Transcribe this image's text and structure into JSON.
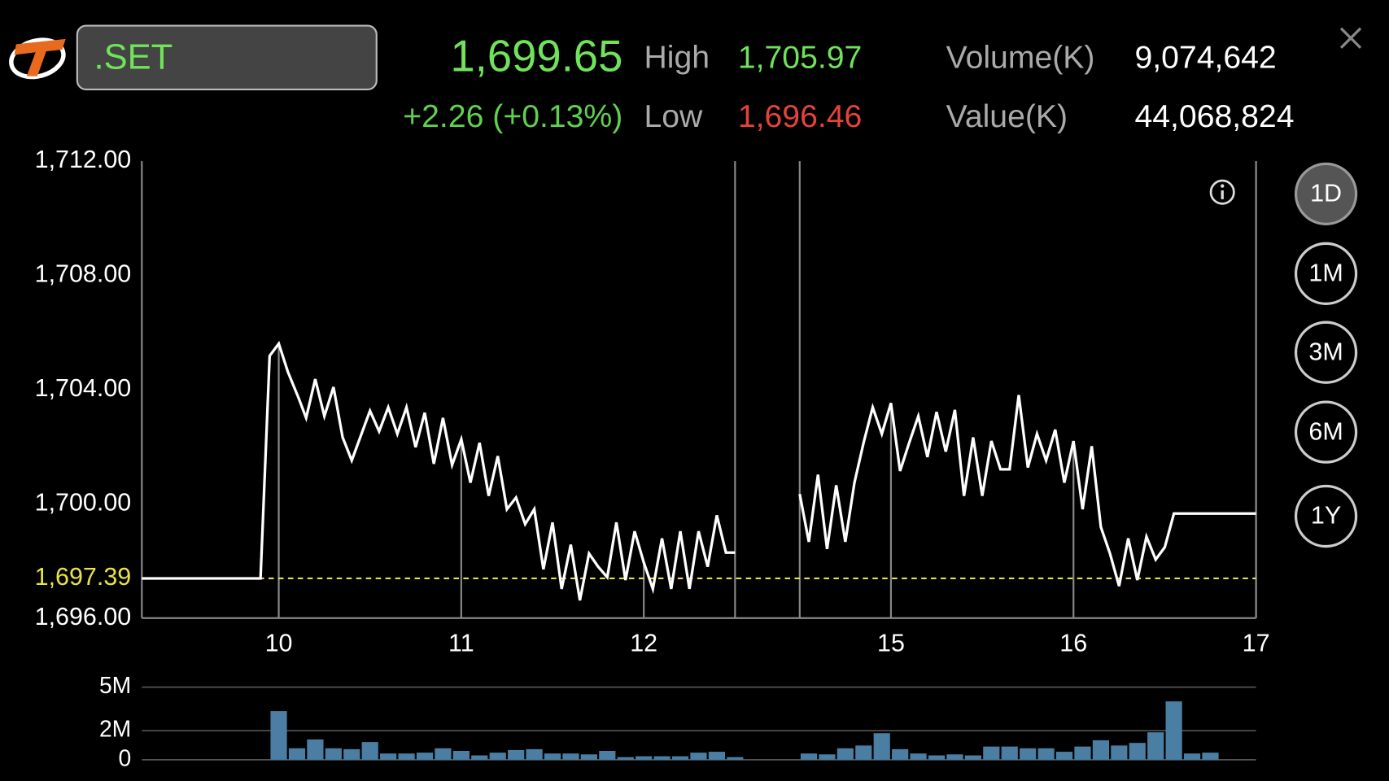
{
  "header": {
    "symbol": ".SET",
    "last": "1,699.65",
    "change": "+2.26 (+0.13%)",
    "high_label": "High",
    "high": "1,705.97",
    "low_label": "Low",
    "low": "1,696.46",
    "volume_label": "Volume(K)",
    "volume": "9,074,642",
    "value_label": "Value(K)",
    "value": "44,068,824"
  },
  "periods": [
    "1D",
    "1M",
    "3M",
    "6M",
    "1Y"
  ],
  "selected_period": "1D",
  "chart_data": [
    {
      "type": "line",
      "color": "#ffffff",
      "xlim": [
        9.25,
        17
      ],
      "break": [
        12.5,
        14.5
      ],
      "xticks": [
        10,
        11,
        12,
        15,
        16,
        17
      ],
      "ylim": [
        1696,
        1712
      ],
      "yticks": [
        {
          "value": 1712,
          "label": "1,712.00"
        },
        {
          "value": 1708,
          "label": "1,708.00"
        },
        {
          "value": 1704,
          "label": "1,704.00"
        },
        {
          "value": 1700,
          "label": "1,700.00"
        },
        {
          "value": 1696,
          "label": "1,696.00"
        }
      ],
      "reference": {
        "value": 1697.39,
        "label": "1,697.39",
        "color": "#e8e24a"
      },
      "x": [
        9.25,
        9.9,
        9.95,
        10.0,
        10.05,
        10.11,
        10.15,
        10.2,
        10.25,
        10.3,
        10.35,
        10.4,
        10.45,
        10.5,
        10.55,
        10.6,
        10.65,
        10.7,
        10.75,
        10.8,
        10.85,
        10.9,
        10.95,
        11.0,
        11.05,
        11.1,
        11.15,
        11.2,
        11.25,
        11.3,
        11.35,
        11.4,
        11.45,
        11.5,
        11.55,
        11.6,
        11.65,
        11.7,
        11.75,
        11.8,
        11.85,
        11.9,
        11.95,
        12.0,
        12.05,
        12.1,
        12.15,
        12.2,
        12.25,
        12.3,
        12.35,
        12.4,
        12.45,
        12.5,
        14.5,
        14.55,
        14.6,
        14.65,
        14.7,
        14.75,
        14.8,
        14.85,
        14.9,
        14.95,
        15.0,
        15.05,
        15.1,
        15.15,
        15.2,
        15.25,
        15.3,
        15.35,
        15.4,
        15.45,
        15.5,
        15.55,
        15.6,
        15.65,
        15.7,
        15.75,
        15.8,
        15.85,
        15.9,
        15.95,
        16.0,
        16.05,
        16.1,
        16.15,
        16.2,
        16.25,
        16.3,
        16.35,
        16.4,
        16.45,
        16.5,
        16.55,
        17.0
      ],
      "values": [
        1697.39,
        1697.39,
        1705.18,
        1705.61,
        1704.62,
        1703.69,
        1703.01,
        1704.37,
        1703.07,
        1704.09,
        1702.33,
        1701.52,
        1702.39,
        1703.26,
        1702.54,
        1703.38,
        1702.45,
        1703.38,
        1701.98,
        1703.19,
        1701.4,
        1703.01,
        1701.36,
        1702.26,
        1700.74,
        1702.14,
        1700.28,
        1701.67,
        1699.81,
        1700.22,
        1699.29,
        1699.81,
        1697.71,
        1699.35,
        1697.02,
        1698.57,
        1696.62,
        1698.26,
        1697.8,
        1697.43,
        1699.35,
        1697.33,
        1699.04,
        1697.95,
        1697.02,
        1698.79,
        1697.02,
        1699.04,
        1697.02,
        1699.04,
        1697.8,
        1699.6,
        1698.29,
        1698.29,
        1700.34,
        1698.67,
        1701.02,
        1698.42,
        1700.65,
        1698.67,
        1700.74,
        1702.14,
        1703.38,
        1702.45,
        1703.53,
        1701.15,
        1702.14,
        1703.07,
        1701.64,
        1703.22,
        1701.83,
        1703.29,
        1700.28,
        1702.33,
        1700.28,
        1702.2,
        1701.21,
        1701.21,
        1703.81,
        1701.27,
        1702.45,
        1701.52,
        1702.6,
        1700.74,
        1702.2,
        1699.81,
        1702.02,
        1699.19,
        1698.26,
        1697.12,
        1698.79,
        1697.33,
        1698.85,
        1698.05,
        1698.48,
        1699.66,
        1699.66
      ]
    },
    {
      "type": "bar",
      "color": "#4a7ea3",
      "xlim": [
        9.25,
        17
      ],
      "break": [
        12.5,
        14.5
      ],
      "ylim": [
        0,
        5000000
      ],
      "yticks": [
        {
          "value": 5000000,
          "label": "5M"
        },
        {
          "value": 2000000,
          "label": "2M"
        },
        0
      ],
      "x": [
        10.0,
        10.1,
        10.2,
        10.3,
        10.4,
        10.5,
        10.6,
        10.7,
        10.8,
        10.9,
        11.0,
        11.1,
        11.2,
        11.3,
        11.4,
        11.5,
        11.6,
        11.7,
        11.8,
        11.9,
        12.0,
        12.1,
        12.2,
        12.3,
        12.4,
        12.5,
        14.55,
        14.65,
        14.75,
        14.85,
        14.95,
        15.05,
        15.15,
        15.25,
        15.35,
        15.45,
        15.55,
        15.65,
        15.75,
        15.85,
        15.95,
        16.05,
        16.15,
        16.25,
        16.35,
        16.45,
        16.55,
        16.65,
        16.75
      ],
      "values": [
        3350000,
        790000,
        1400000,
        790000,
        730000,
        1220000,
        430000,
        430000,
        490000,
        790000,
        610000,
        300000,
        490000,
        670000,
        730000,
        430000,
        430000,
        370000,
        610000,
        180000,
        240000,
        240000,
        240000,
        490000,
        550000,
        180000,
        430000,
        370000,
        790000,
        980000,
        1830000,
        730000,
        430000,
        300000,
        370000,
        300000,
        910000,
        910000,
        790000,
        790000,
        550000,
        910000,
        1340000,
        980000,
        1160000,
        1890000,
        4020000,
        430000,
        490000
      ]
    }
  ]
}
